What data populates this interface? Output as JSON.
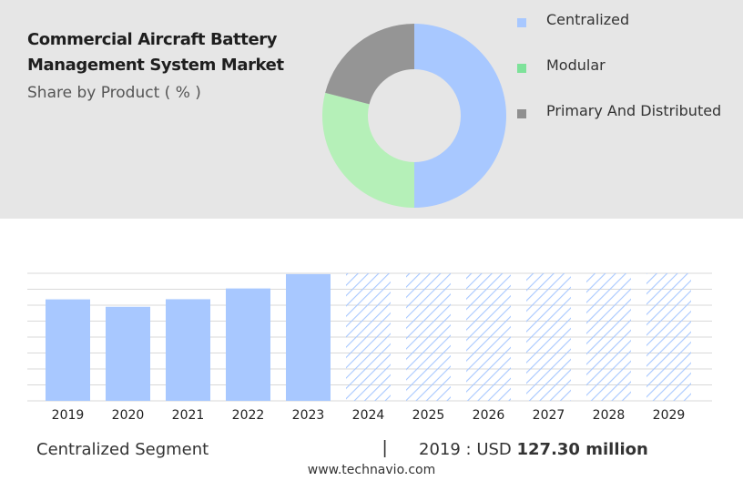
{
  "header": {
    "title_line1": "Commercial Aircraft Battery",
    "title_line2": "Management System Market",
    "subtitle": "Share by Product ( % )"
  },
  "legend": [
    {
      "label": "Centralized",
      "color": "#a8c8ff"
    },
    {
      "label": "Modular",
      "color": "#7ee29a"
    },
    {
      "label": "Primary And Distributed",
      "color": "#8f8f8f"
    }
  ],
  "chart_data": [
    {
      "type": "pie",
      "variant": "donut",
      "slices": [
        {
          "label": "Centralized",
          "value": 50,
          "color": "#a8c8ff"
        },
        {
          "label": "Modular",
          "value": 29,
          "color": "#b5f0b8"
        },
        {
          "label": "Primary And Distributed",
          "value": 21,
          "color": "#959595"
        }
      ]
    },
    {
      "type": "bar",
      "categories": [
        "2019",
        "2020",
        "2021",
        "2022",
        "2023",
        "2024",
        "2025",
        "2026",
        "2027",
        "2028",
        "2029"
      ],
      "values": [
        127.3,
        118.0,
        127.5,
        141.0,
        159.0,
        null,
        null,
        null,
        null,
        null,
        null
      ],
      "forecast_categories": [
        "2024",
        "2025",
        "2026",
        "2027",
        "2028",
        "2029"
      ],
      "forecast_style": "hatched",
      "color": "#a8c8ff",
      "ylim": [
        0,
        160
      ],
      "grid": true
    }
  ],
  "footer": {
    "segment": "Centralized Segment",
    "separator": "|",
    "year_label": "2019 : USD ",
    "value": "127.30 million",
    "source": "www.technavio.com"
  }
}
